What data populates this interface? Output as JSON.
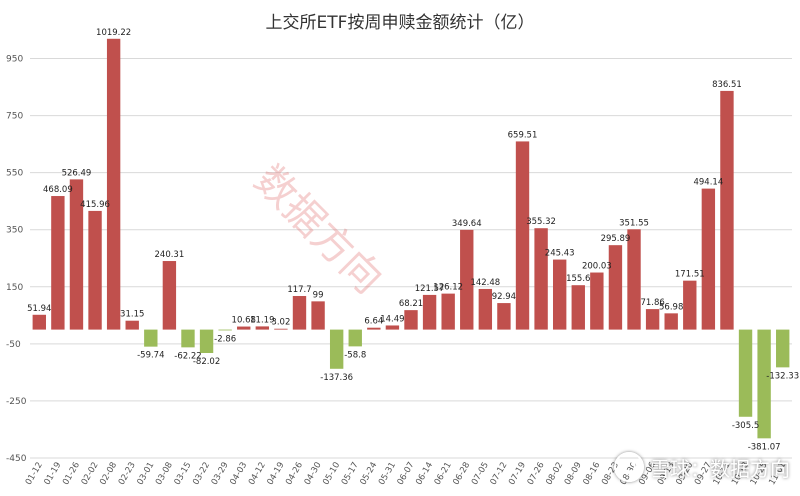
{
  "chart_data": {
    "type": "bar",
    "title": "上交所ETF按周申赎金额统计（亿）",
    "xlabel": "",
    "ylabel": "",
    "ylim": [
      -450,
      1050
    ],
    "y_ticks": [
      950,
      750,
      550,
      350,
      150,
      -50,
      -250,
      -450
    ],
    "y_tick_labels": [
      "950",
      "750",
      "550",
      "350",
      "150",
      "-50",
      "-250",
      "-450"
    ],
    "gridlines": true,
    "categories": [
      "01-12",
      "01-19",
      "01-26",
      "02-02",
      "02-08",
      "02-23",
      "03-01",
      "03-08",
      "03-15",
      "03-22",
      "03-29",
      "04-03",
      "04-12",
      "04-19",
      "04-26",
      "04-30",
      "05-10",
      "05-17",
      "05-24",
      "05-31",
      "06-07",
      "06-14",
      "06-21",
      "06-28",
      "07-05",
      "07-12",
      "07-19",
      "07-26",
      "08-02",
      "08-09",
      "08-16",
      "08-23",
      "08-30",
      "09-06",
      "09-13",
      "09-20",
      "09-27",
      "10-11",
      "10-18",
      "10-25",
      "11-01"
    ],
    "visible_x_labels": [
      "01-12",
      "01-19",
      "01-26",
      "02-02",
      "02-08",
      "02-23",
      "03-01",
      "03-08",
      "03-15",
      "03-22",
      "03-29",
      "04-03",
      "04-12",
      "04-19",
      "04-26",
      "04-30",
      "05-10",
      "05-17",
      "05-24",
      "05-31",
      "06-07",
      "06-14",
      "06-21",
      "06-28",
      "07-05",
      "07-12",
      "07-19",
      "07-26",
      "08-02",
      "08-09",
      "08-16",
      "08-23",
      "08-30",
      "09-06",
      "09-13",
      "09-20",
      "09-27",
      "10-11",
      "10-18",
      "10-25",
      "11-01"
    ],
    "values": [
      51.94,
      468.09,
      526.49,
      415.96,
      1019.22,
      31.15,
      -59.74,
      240.31,
      -62.22,
      -82.02,
      -2.86,
      10.68,
      11.19,
      3.02,
      117.7,
      99,
      -137.36,
      -58.8,
      6.64,
      14.49,
      68.21,
      121.57,
      126.12,
      349.64,
      142.48,
      92.94,
      659.51,
      355.32,
      245.43,
      155.6,
      200.03,
      295.89,
      351.55,
      71.86,
      56.98,
      171.51,
      494.14,
      836.51,
      -305.5,
      -381.07,
      -132.33
    ],
    "data_labels": [
      "51.94",
      "468.09",
      "526.49",
      "415.96",
      "1019.22",
      "31.15",
      "-59.74",
      "240.31",
      "-62.22",
      "-82.02",
      "-2.86",
      "10.68",
      "11.19",
      "3.02",
      "117.7",
      "99",
      "-137.36",
      "-58.8",
      "6.64",
      "14.49",
      "68.21",
      "121.57",
      "126.12",
      "349.64",
      "142.48",
      "92.94",
      "659.51",
      "355.32",
      "245.43",
      "155.6",
      "200.03",
      "295.89",
      "351.55",
      "71.86",
      "56.98",
      "171.51",
      "494.14",
      "836.51",
      "-305.5",
      "-381.07",
      "-132.33"
    ],
    "colors": {
      "positive": "#c0504d",
      "negative": "#9bbb59",
      "grid": "#d9d9d9",
      "text": "#333333"
    }
  },
  "watermark": "数据方向",
  "footer": "雪球：数据方向"
}
